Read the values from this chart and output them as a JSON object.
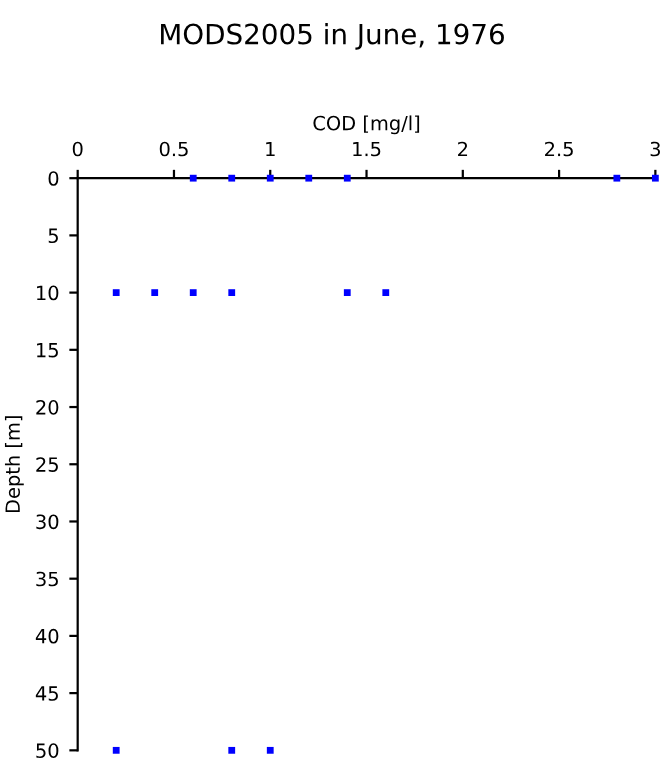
{
  "chart_data": {
    "type": "scatter",
    "title": "MODS2005 in June, 1976",
    "xlabel": "COD [mg/l]",
    "ylabel": "Depth [m]",
    "series": [
      {
        "color": "#0000ff",
        "x": [
          0.6,
          0.8,
          1.0,
          1.2,
          1.4,
          2.8,
          3.0,
          0.2,
          0.4,
          0.6,
          0.8,
          1.4,
          1.6,
          0.2,
          0.8,
          1.0
        ],
        "values": [
          0,
          0,
          0,
          0,
          0,
          0,
          0,
          10,
          10,
          10,
          10,
          10,
          10,
          50,
          50,
          50
        ]
      }
    ],
    "xlim": [
      0,
      3
    ],
    "xticks": [
      0,
      0.5,
      1,
      1.5,
      2,
      2.5,
      3
    ],
    "ylim": [
      50,
      0
    ],
    "yticks": [
      0,
      5,
      10,
      15,
      20,
      25,
      30,
      35,
      40,
      45,
      50
    ],
    "marker": "square",
    "grid": false,
    "legend": false
  }
}
